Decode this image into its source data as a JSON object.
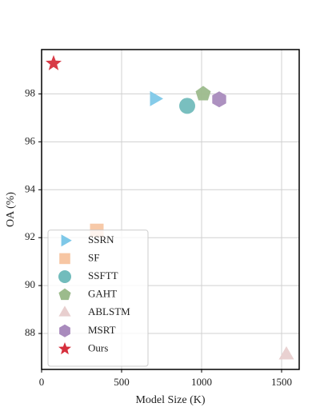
{
  "chart_data": {
    "type": "scatter",
    "x_label": "Model Size (K)",
    "y_label": "OA (%)",
    "xlim": [
      0,
      1610
    ],
    "ylim": [
      86.5,
      99.85
    ],
    "xticks": [
      0,
      500,
      1000,
      1500
    ],
    "yticks": [
      88,
      90,
      92,
      94,
      96,
      98
    ],
    "grid": true,
    "legend": "lower left",
    "series": [
      {
        "name": "SSRN",
        "color": "#7ec8e8",
        "marker": "triangle-right",
        "x": [
          705
        ],
        "y": [
          97.8
        ]
      },
      {
        "name": "SF",
        "color": "#f7c6a3",
        "marker": "square",
        "x": [
          345
        ],
        "y": [
          92.3
        ]
      },
      {
        "name": "SSFTT",
        "color": "#72bcbc",
        "marker": "circle",
        "x": [
          910
        ],
        "y": [
          97.5
        ]
      },
      {
        "name": "GAHT",
        "color": "#9cbb8c",
        "marker": "pentagon",
        "x": [
          1010
        ],
        "y": [
          98.0
        ]
      },
      {
        "name": "ABLSTM",
        "color": "#e8cfcf",
        "marker": "triangle-up",
        "x": [
          1530
        ],
        "y": [
          87.1
        ]
      },
      {
        "name": "MSRT",
        "color": "#a98bbd",
        "marker": "hexagon",
        "x": [
          1110
        ],
        "y": [
          97.77
        ]
      },
      {
        "name": "Ours",
        "color": "#d62f3c",
        "marker": "star",
        "x": [
          75
        ],
        "y": [
          99.27
        ]
      }
    ]
  }
}
